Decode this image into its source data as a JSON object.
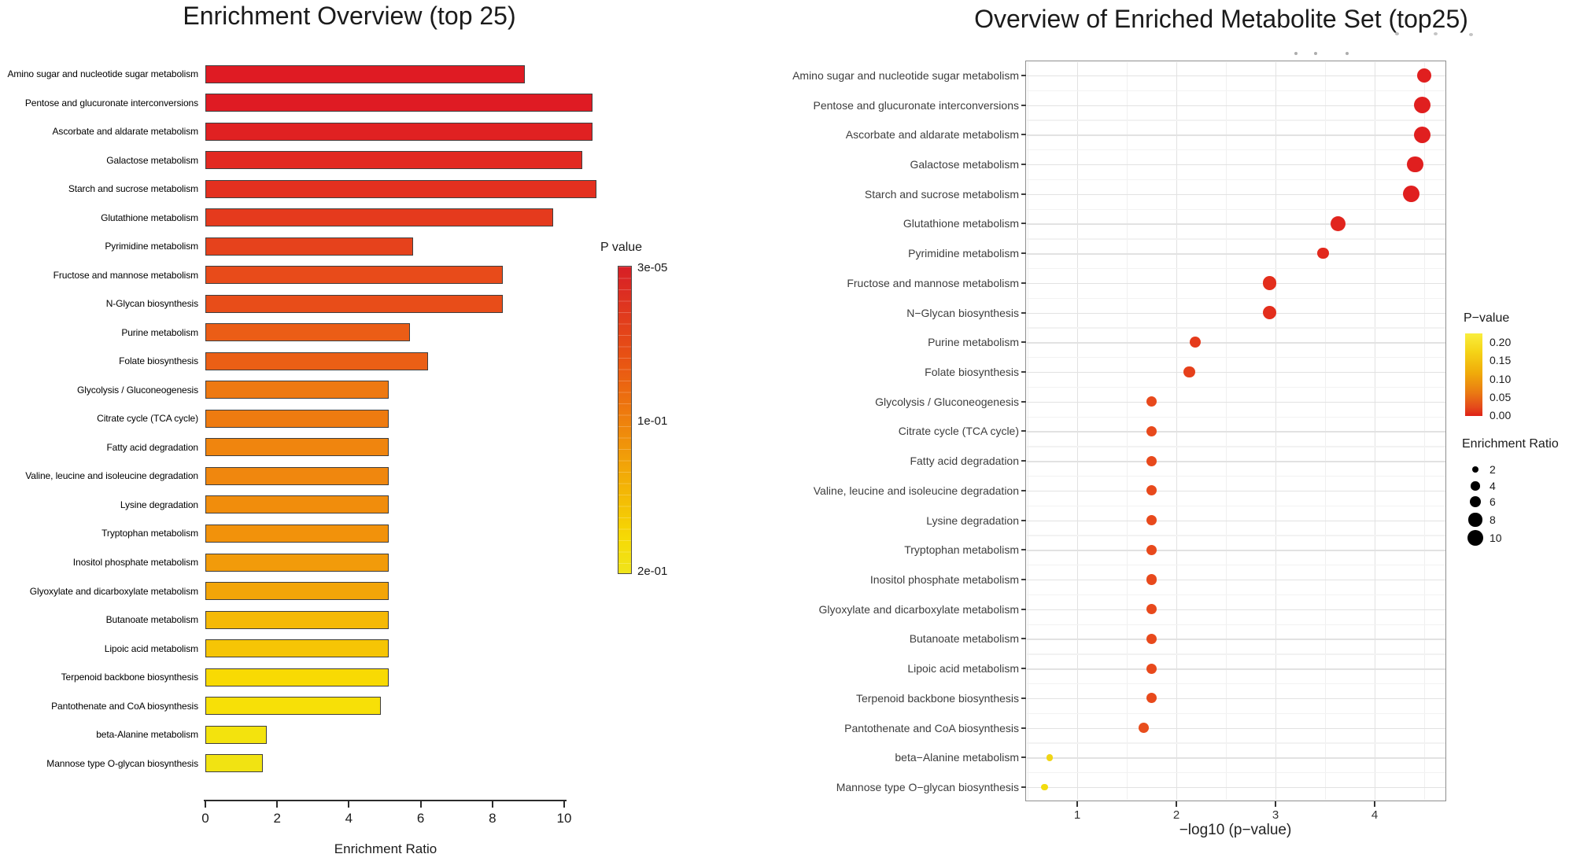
{
  "page": {
    "background": "#ffffff"
  },
  "chart_data": [
    {
      "id": "enrichment-bar-chart",
      "type": "bar",
      "orientation": "horizontal",
      "title": "Enrichment Overview (top 25)",
      "xlabel": "Enrichment Ratio",
      "x_ticks": [
        0,
        2,
        4,
        6,
        8,
        10
      ],
      "xlim": [
        0,
        11.2
      ],
      "grid": false,
      "categories": [
        "Amino sugar and nucleotide sugar metabolism",
        "Pentose and glucuronate interconversions",
        "Ascorbate and aldarate metabolism",
        "Galactose metabolism",
        "Starch and sucrose metabolism",
        "Glutathione metabolism",
        "Pyrimidine metabolism",
        "Fructose and mannose metabolism",
        "N-Glycan biosynthesis",
        "Purine metabolism",
        "Folate biosynthesis",
        "Glycolysis / Gluconeogenesis",
        "Citrate cycle (TCA cycle)",
        "Fatty acid degradation",
        "Valine, leucine and isoleucine degradation",
        "Lysine degradation",
        "Tryptophan metabolism",
        "Inositol phosphate metabolism",
        "Glyoxylate and dicarboxylate metabolism",
        "Butanoate metabolism",
        "Lipoic acid metabolism",
        "Terpenoid backbone biosynthesis",
        "Pantothenate and CoA biosynthesis",
        "beta-Alanine metabolism",
        "Mannose type O-glycan biosynthesis"
      ],
      "values": [
        8.9,
        10.8,
        10.8,
        10.5,
        10.9,
        9.7,
        5.8,
        8.3,
        8.3,
        5.7,
        6.2,
        5.1,
        5.1,
        5.1,
        5.1,
        5.1,
        5.1,
        5.1,
        5.1,
        5.1,
        5.1,
        5.1,
        4.9,
        1.7,
        1.6
      ],
      "bar_colors": [
        "#df1b23",
        "#df1b23",
        "#e02122",
        "#e22921",
        "#e4301f",
        "#e53a1d",
        "#e6421c",
        "#e84b1a",
        "#e84d19",
        "#eb5d16",
        "#eb5f15",
        "#ee7911",
        "#ee7b10",
        "#f0850e",
        "#f0870e",
        "#f18d0c",
        "#f2920b",
        "#f29b0a",
        "#f3a508",
        "#f5b906",
        "#f6c505",
        "#f8da03",
        "#f7e007",
        "#f3e30d",
        "#f1e312"
      ],
      "legend": {
        "title": "P value",
        "labels": [
          "3e-05",
          "1e-01",
          "2e-01"
        ],
        "gradient_top_color": "#d71f26",
        "gradient_bottom_color": "#f0e41c"
      }
    },
    {
      "id": "enrichment-dot-plot",
      "type": "scatter",
      "title": "Overview of Enriched Metabolite Set (top25)",
      "xlabel": "−log10 (p−value)",
      "x_ticks": [
        1,
        2,
        3,
        4
      ],
      "xlim": [
        0.48,
        4.72
      ],
      "grid": true,
      "categories": [
        "Amino sugar and nucleotide sugar metabolism",
        "Pentose and glucuronate interconversions",
        "Ascorbate and aldarate metabolism",
        "Galactose metabolism",
        "Starch and sucrose metabolism",
        "Glutathione metabolism",
        "Pyrimidine metabolism",
        "Fructose and mannose metabolism",
        "N−Glycan biosynthesis",
        "Purine metabolism",
        "Folate biosynthesis",
        "Glycolysis / Gluconeogenesis",
        "Citrate cycle (TCA cycle)",
        "Fatty acid degradation",
        "Valine, leucine and isoleucine degradation",
        "Lysine degradation",
        "Tryptophan metabolism",
        "Inositol phosphate metabolism",
        "Glyoxylate and dicarboxylate metabolism",
        "Butanoate metabolism",
        "Lipoic acid metabolism",
        "Terpenoid backbone biosynthesis",
        "Pantothenate and CoA biosynthesis",
        "beta−Alanine metabolism",
        "Mannose type O−glycan biosynthesis"
      ],
      "x_values": [
        4.5,
        4.48,
        4.48,
        4.41,
        4.37,
        3.63,
        3.48,
        2.94,
        2.94,
        2.19,
        2.13,
        1.75,
        1.75,
        1.75,
        1.75,
        1.75,
        1.75,
        1.75,
        1.75,
        1.75,
        1.75,
        1.75,
        1.67,
        0.72,
        0.67
      ],
      "size_values": [
        8.9,
        10.8,
        10.8,
        10.5,
        10.9,
        9.7,
        5.8,
        8.3,
        8.3,
        5.7,
        6.2,
        5.1,
        5.1,
        5.1,
        5.1,
        5.1,
        5.1,
        5.1,
        5.1,
        5.1,
        5.1,
        5.1,
        4.9,
        1.7,
        1.6
      ],
      "dot_colors": [
        "#e01f1f",
        "#e01f1f",
        "#e01f1f",
        "#e01f1f",
        "#e01f1f",
        "#e1251e",
        "#e2291d",
        "#e32e1c",
        "#e32e1c",
        "#e53a1b",
        "#e6401b",
        "#e8491c",
        "#e8491c",
        "#e8491c",
        "#e8491c",
        "#e8491c",
        "#e8491c",
        "#e8491c",
        "#e8491c",
        "#e8491c",
        "#e8491c",
        "#e8491c",
        "#e84e1d",
        "#f0d515",
        "#f2dc0f"
      ],
      "legend_pvalue": {
        "title": "P−value",
        "tick_labels": [
          "0.20",
          "0.15",
          "0.10",
          "0.05",
          "0.00"
        ]
      },
      "legend_size": {
        "title": "Enrichment Ratio",
        "sizes": [
          "2",
          "4",
          "6",
          "8",
          "10"
        ],
        "color": "#000000"
      }
    }
  ]
}
